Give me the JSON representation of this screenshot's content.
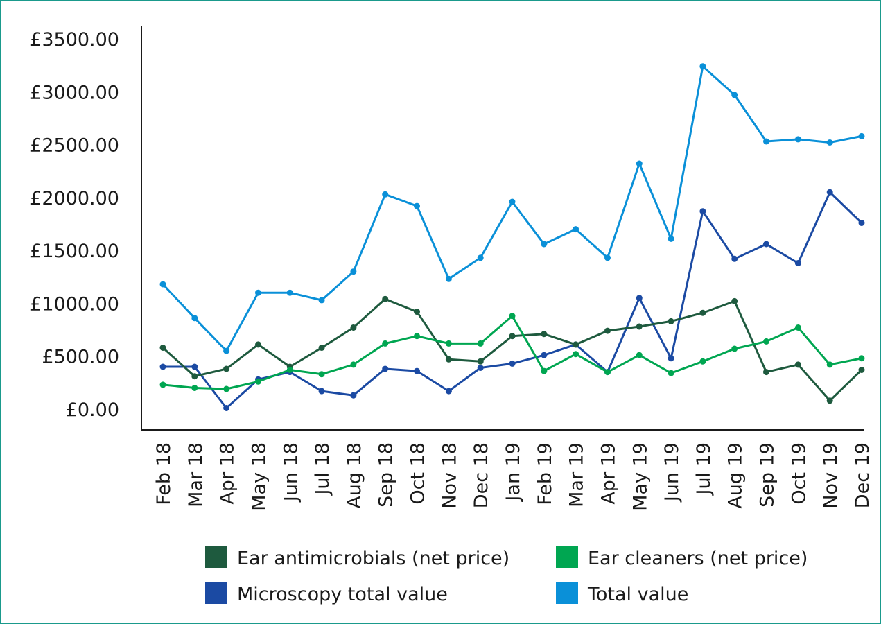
{
  "chart_data": {
    "type": "line",
    "title": "",
    "xlabel": "",
    "ylabel": "",
    "ylim": [
      0,
      3500
    ],
    "y_ticks": [
      0,
      500,
      1000,
      1500,
      2000,
      2500,
      3000,
      3500
    ],
    "y_tick_labels": [
      "£0.00",
      "£500.00",
      "£1000.00",
      "£1500.00",
      "£2000.00",
      "£2500.00",
      "£3000.00",
      "£3500.00"
    ],
    "grid": false,
    "legend_position": "bottom",
    "categories": [
      "Feb 18",
      "Mar 18",
      "Apr 18",
      "May 18",
      "Jun 18",
      "Jul 18",
      "Aug 18",
      "Sep 18",
      "Oct 18",
      "Nov 18",
      "Dec 18",
      "Jan 19",
      "Feb 19",
      "Mar 19",
      "Apr 19",
      "May 19",
      "Jun 19",
      "Jul 19",
      "Aug 19",
      "Sep 19",
      "Oct 19",
      "Nov 19",
      "Dec 19"
    ],
    "series": [
      {
        "name": "Total value",
        "color": "#0a90d8",
        "values": [
          1180,
          860,
          550,
          1100,
          1100,
          1030,
          1300,
          2030,
          1920,
          1230,
          1430,
          1960,
          1560,
          1700,
          1430,
          2320,
          1610,
          3240,
          2970,
          2530,
          2550,
          2520,
          2580
        ]
      },
      {
        "name": "Microscopy total value",
        "color": "#1b4aa3",
        "values": [
          400,
          400,
          10,
          280,
          350,
          170,
          130,
          380,
          360,
          170,
          390,
          430,
          510,
          610,
          350,
          1050,
          480,
          1870,
          1420,
          1560,
          1380,
          2050,
          1760
        ]
      },
      {
        "name": "Ear antimicrobials (net price)",
        "color": "#1e5a3e",
        "values": [
          580,
          310,
          380,
          610,
          400,
          580,
          770,
          1040,
          920,
          470,
          450,
          690,
          710,
          610,
          740,
          780,
          830,
          910,
          1020,
          350,
          420,
          80,
          370
        ]
      },
      {
        "name": "Ear cleaners (net price)",
        "color": "#00a651",
        "values": [
          230,
          200,
          190,
          260,
          370,
          330,
          420,
          620,
          690,
          620,
          620,
          880,
          360,
          520,
          350,
          510,
          340,
          450,
          570,
          640,
          770,
          420,
          480
        ]
      }
    ],
    "legend": [
      {
        "name": "Ear antimicrobials (net price)",
        "color": "#1e5a3e"
      },
      {
        "name": "Ear cleaners (net price)",
        "color": "#00a651"
      },
      {
        "name": "Microscopy total value",
        "color": "#1b4aa3"
      },
      {
        "name": "Total value",
        "color": "#0a90d8"
      }
    ]
  }
}
